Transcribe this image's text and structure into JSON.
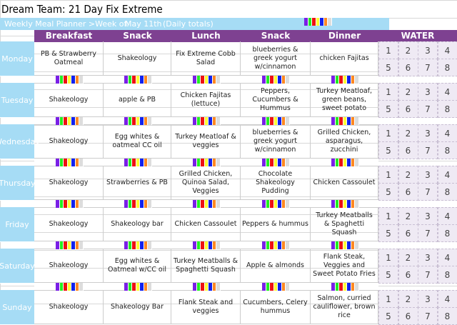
{
  "title": "Dream Team: 21 Day Fix Extreme",
  "banner": {
    "label": "Weekly Meal Planner >Week of:",
    "week": "May 11th",
    "totals": "(Daily totals)"
  },
  "headers": [
    "Breakfast",
    "Snack",
    "Lunch",
    "Snack",
    "Dinner",
    "WATER"
  ],
  "container_colors": [
    "#7a1fe6",
    "#22ee22",
    "#ee1111",
    "#ffff33",
    "#1122ee",
    "#ff8822",
    "#dddddd"
  ],
  "water_numbers": [
    "1",
    "2",
    "3",
    "4",
    "5",
    "6",
    "7",
    "8"
  ],
  "days": [
    {
      "name": "Monday",
      "meals": [
        "PB & Strawberry Oatmeal",
        "Shakeology",
        "Fix Extreme Cobb Salad",
        "blueberries & greek yogurt w/cinnamon",
        "chicken Fajitas"
      ]
    },
    {
      "name": "Tuesday",
      "meals": [
        "Shakeology",
        "apple & PB",
        "Chicken Fajitas (lettuce)",
        "Peppers, Cucumbers & Hummus",
        "Turkey Meatloaf, green beans, sweet potato"
      ]
    },
    {
      "name": "Wednesday",
      "meals": [
        "Shakeology",
        "Egg whites & oatmeal CC oil",
        "Turkey Meatloaf & veggies",
        "blueberries & greek yogurt w/cinnamon",
        "Grilled Chicken, asparagus, zucchini"
      ]
    },
    {
      "name": "Thursday",
      "meals": [
        "Shakeology",
        "Strawberries & PB",
        "Grilled Chicken, Quinoa Salad, Veggies",
        "Chocolate Shakeology Pudding",
        "Chicken Cassoulet"
      ]
    },
    {
      "name": "Friday",
      "meals": [
        "Shakeology",
        "Shakeology bar",
        "Chicken Cassoulet",
        "Peppers & hummus",
        "Turkey Meatballs & Spaghetti Squash"
      ]
    },
    {
      "name": "Saturday",
      "meals": [
        "Shakeology",
        "Egg whites & Oatmeal w/CC oil",
        "Turkey Meatballs & Spaghetti Squash",
        "Apple & almonds",
        "Flank Steak, Veggies and Sweet Potato Fries"
      ]
    },
    {
      "name": "Sunday",
      "meals": [
        "Shakeology",
        "Shakeology Bar",
        "Flank Steak and veggies",
        "Cucumbers, Celery hummus",
        "Salmon, curried cauliflower, brown rice"
      ]
    }
  ]
}
